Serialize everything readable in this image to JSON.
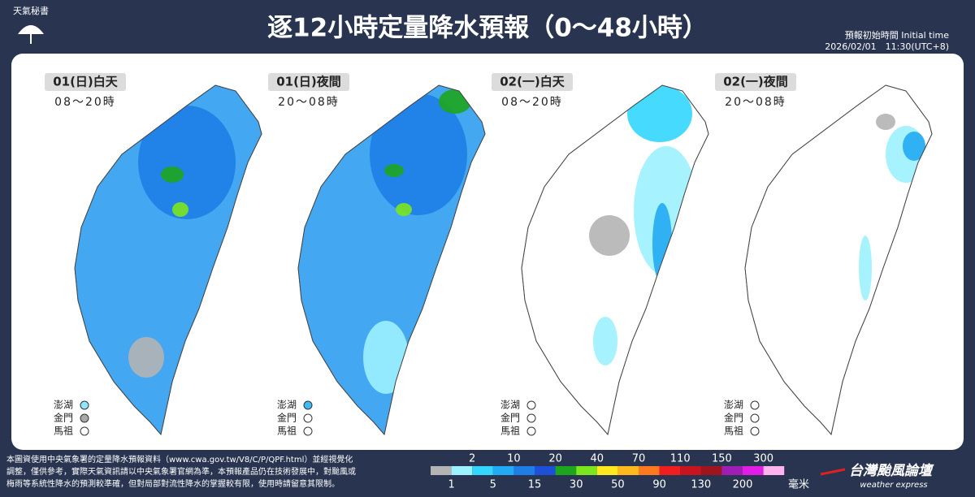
{
  "header": {
    "logo": "天氣秘書",
    "title": "逐12小時定量降水預報（0～48小時）",
    "init_label": "預報初始時間 Initial time",
    "init_time": "2026/02/01　11:30(UTC+8)"
  },
  "panels": [
    {
      "label": "01(日)白天",
      "time": "08～20時",
      "islands": [
        {
          "name": "澎湖",
          "color": "#8ee6ff"
        },
        {
          "name": "金門",
          "color": "#a9a9a9"
        },
        {
          "name": "馬祖",
          "color": "#ffffff"
        }
      ]
    },
    {
      "label": "01(日)夜間",
      "time": "20～08時",
      "islands": [
        {
          "name": "澎湖",
          "color": "#3cbcf5"
        },
        {
          "name": "金門",
          "color": "#ffffff"
        },
        {
          "name": "馬祖",
          "color": "#ffffff"
        }
      ]
    },
    {
      "label": "02(一)白天",
      "time": "08～20時",
      "islands": [
        {
          "name": "澎湖",
          "color": "#ffffff"
        },
        {
          "name": "金門",
          "color": "#ffffff"
        },
        {
          "name": "馬祖",
          "color": "#ffffff"
        }
      ]
    },
    {
      "label": "02(一)夜間",
      "time": "20～08時",
      "islands": [
        {
          "name": "澎湖",
          "color": "#ffffff"
        },
        {
          "name": "金門",
          "color": "#ffffff"
        },
        {
          "name": "馬祖",
          "color": "#ffffff"
        }
      ]
    }
  ],
  "footer": {
    "lines": [
      "本圖資使用中央氣象署的定量降水預報資料（www.cwa.gov.tw/V8/C/P/QPF.html）並經視覺化",
      "調整，僅供參考，實際天氣資訊請以中央氣象署官網為準，本預報產品仍在技術發展中，對颱風或",
      "梅雨等系統性降水的預測較準確，但對局部對流性降水的掌握較有限，使用時請留意其限制。"
    ]
  },
  "legend": {
    "colors": [
      "#b4b4b4",
      "#9cf2ff",
      "#33d6ff",
      "#22aaf2",
      "#1e7ee6",
      "#1e4fd8",
      "#1ea51e",
      "#7be51e",
      "#ffe81e",
      "#ffb91e",
      "#ff7a1e",
      "#f01e1e",
      "#c8141e",
      "#a0141e",
      "#a01eb4",
      "#e11ee6",
      "#ffb4f0"
    ],
    "upper_labels": [
      "2",
      "10",
      "20",
      "40",
      "70",
      "110",
      "150",
      "300"
    ],
    "lower_labels": [
      "1",
      "5",
      "15",
      "30",
      "50",
      "90",
      "130",
      "200"
    ],
    "unit": "毫米"
  },
  "brand": {
    "name": "台灣颱風論壇",
    "tagline": "weather express"
  }
}
